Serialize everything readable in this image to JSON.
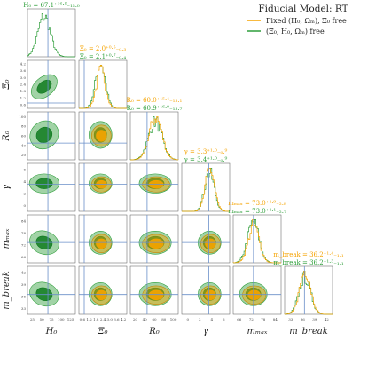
{
  "chart_data": {
    "type": "corner",
    "title": "Fiducial Model: RT",
    "legend": {
      "placement": "top-right",
      "entries": [
        {
          "label": "Fixed (H₀, Ωₘ), Ξ₀ free",
          "color": "#f5a300"
        },
        {
          "label": "(Ξ₀, H₀, Ωₘ) free",
          "color": "#2e9e3a"
        }
      ]
    },
    "colors": {
      "orange": "#f5a300",
      "green": "#2e9e3a",
      "truth": "#6a8fc9"
    },
    "parameters": [
      {
        "name": "H₀",
        "range": [
          25,
          125
        ],
        "ticks": [
          "25",
          "50",
          "75",
          "100",
          "125"
        ],
        "truth": 67.7,
        "annotations": [
          {
            "text": "H₀ = 67.1⁺¹⁶·⁵₋₁₅.₀",
            "color": "#2e9e3a"
          }
        ]
      },
      {
        "name": "Ξ₀",
        "range": [
          0.6,
          4.2
        ],
        "ticks": [
          "0.6",
          "1.2",
          "1.8",
          "2.4",
          "3.0",
          "3.6",
          "4.2"
        ],
        "truth": 1.0,
        "annotations": [
          {
            "text": "Ξ₀ = 2.0⁺⁰·⁵₋₀.₃",
            "color": "#f5a300"
          },
          {
            "text": "Ξ₀ = 2.1⁺⁰·⁷₋₀.₄",
            "color": "#2e9e3a"
          }
        ]
      },
      {
        "name": "R₀",
        "range": [
          20,
          100
        ],
        "ticks": [
          "20",
          "40",
          "60",
          "80",
          "100"
        ],
        "truth": 48,
        "annotations": [
          {
            "text": "R₀ = 60.0⁺¹⁵·⁴₋₁₃.₁",
            "color": "#f5a300"
          },
          {
            "text": "R₀ = 60.9⁺¹⁶·⁰₋₁₃.₇",
            "color": "#2e9e3a"
          }
        ]
      },
      {
        "name": "γ",
        "range": [
          0,
          6
        ],
        "ticks": [
          "0",
          "2",
          "4",
          "6"
        ],
        "truth": 3.4,
        "annotations": [
          {
            "text": "γ = 3.3⁺¹·⁰₋₀.⁹",
            "color": "#f5a300"
          },
          {
            "text": "γ = 3.4⁺¹·⁰₋₀.⁹",
            "color": "#2e9e3a"
          }
        ]
      },
      {
        "name": "mₘₐₓ",
        "range": [
          60,
          90
        ],
        "ticks": [
          "66",
          "72",
          "78",
          "84"
        ],
        "truth": 72.7,
        "annotations": [
          {
            "text": "mₘₐₓ = 73.0⁺⁴·⁹₋₂.₈",
            "color": "#f5a300"
          },
          {
            "text": "mₘₐₓ = 73.0⁺⁴·¹₋₂.₇",
            "color": "#2e9e3a"
          }
        ]
      },
      {
        "name": "m_break",
        "range": [
          30,
          45
        ],
        "ticks": [
          "33",
          "36",
          "39",
          "42"
        ],
        "truth": 36.2,
        "annotations": [
          {
            "text": "m_break = 36.2⁺¹·⁴₋₁.₁",
            "color": "#f5a300"
          },
          {
            "text": "m_break = 36.2⁺¹·³₋₁.₁",
            "color": "#2e9e3a"
          }
        ]
      }
    ]
  }
}
